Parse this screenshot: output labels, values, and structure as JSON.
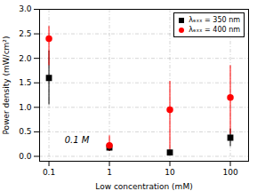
{
  "chart_data": {
    "type": "scatter",
    "xlabel": "Low concentration (mM)",
    "ylabel": "Power density (mW/cm²)",
    "annotation": "0.1 M",
    "log": "x",
    "grid": true,
    "legend": "upper right",
    "xlim": [
      0.07,
      200
    ],
    "ylim": [
      -0.1,
      3.0
    ],
    "xticks": [
      0.1,
      1,
      10,
      100
    ],
    "yticks": [
      {
        "value": 0.0,
        "label": "0.0"
      },
      0.5,
      {
        "value": 1.0,
        "label": "1.0"
      },
      1.5,
      {
        "value": 2.0,
        "label": "2.0"
      },
      2.5,
      {
        "value": 3.0,
        "label": "3.0"
      }
    ],
    "x": [
      0.1,
      1,
      10,
      100
    ],
    "series": [
      {
        "name": "λₑₓₓ = 350 nm",
        "color": "black",
        "marker": "square",
        "values": [
          1.6,
          0.18,
          0.08,
          0.38
        ],
        "yerr_low": [
          0.55,
          0.08,
          0.05,
          0.18
        ],
        "yerr_high": [
          0.55,
          0.08,
          0.05,
          0.18
        ]
      },
      {
        "name": "λₑₓₓ = 400 nm",
        "color": "red",
        "marker": "circle",
        "values": [
          2.4,
          0.22,
          0.95,
          1.2
        ],
        "yerr_low": [
          0.55,
          0.12,
          0.82,
          0.75
        ],
        "yerr_high": [
          0.25,
          0.2,
          0.58,
          0.65
        ]
      }
    ]
  }
}
